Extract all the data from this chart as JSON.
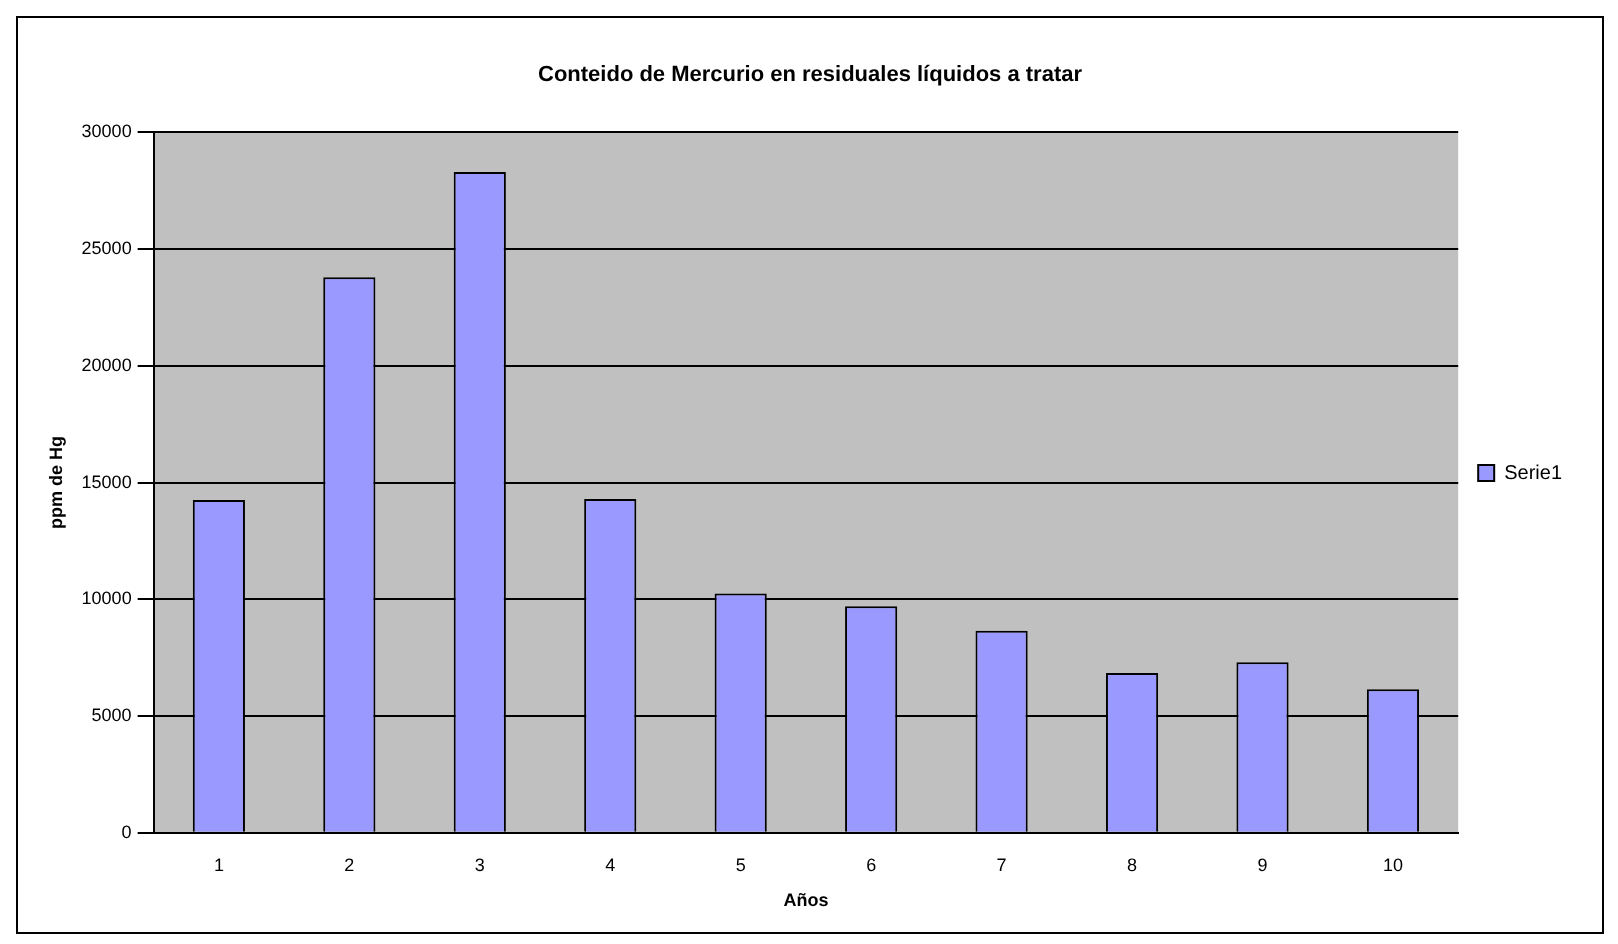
{
  "chart_data": {
    "type": "bar",
    "title": "Conteido de Mercurio en residuales líquidos a tratar",
    "xlabel": "Años",
    "ylabel": "ppm de Hg",
    "categories": [
      "1",
      "2",
      "3",
      "4",
      "5",
      "6",
      "7",
      "8",
      "9",
      "10"
    ],
    "series": [
      {
        "name": "Serie1",
        "color": "#9999ff",
        "values": [
          14250,
          23800,
          28300,
          14300,
          10250,
          9700,
          8650,
          6850,
          7300,
          6150
        ]
      }
    ],
    "ylim": [
      0,
      30000
    ],
    "yticks": [
      0,
      5000,
      10000,
      15000,
      20000,
      25000,
      30000
    ],
    "grid": "y",
    "legend": "right"
  }
}
